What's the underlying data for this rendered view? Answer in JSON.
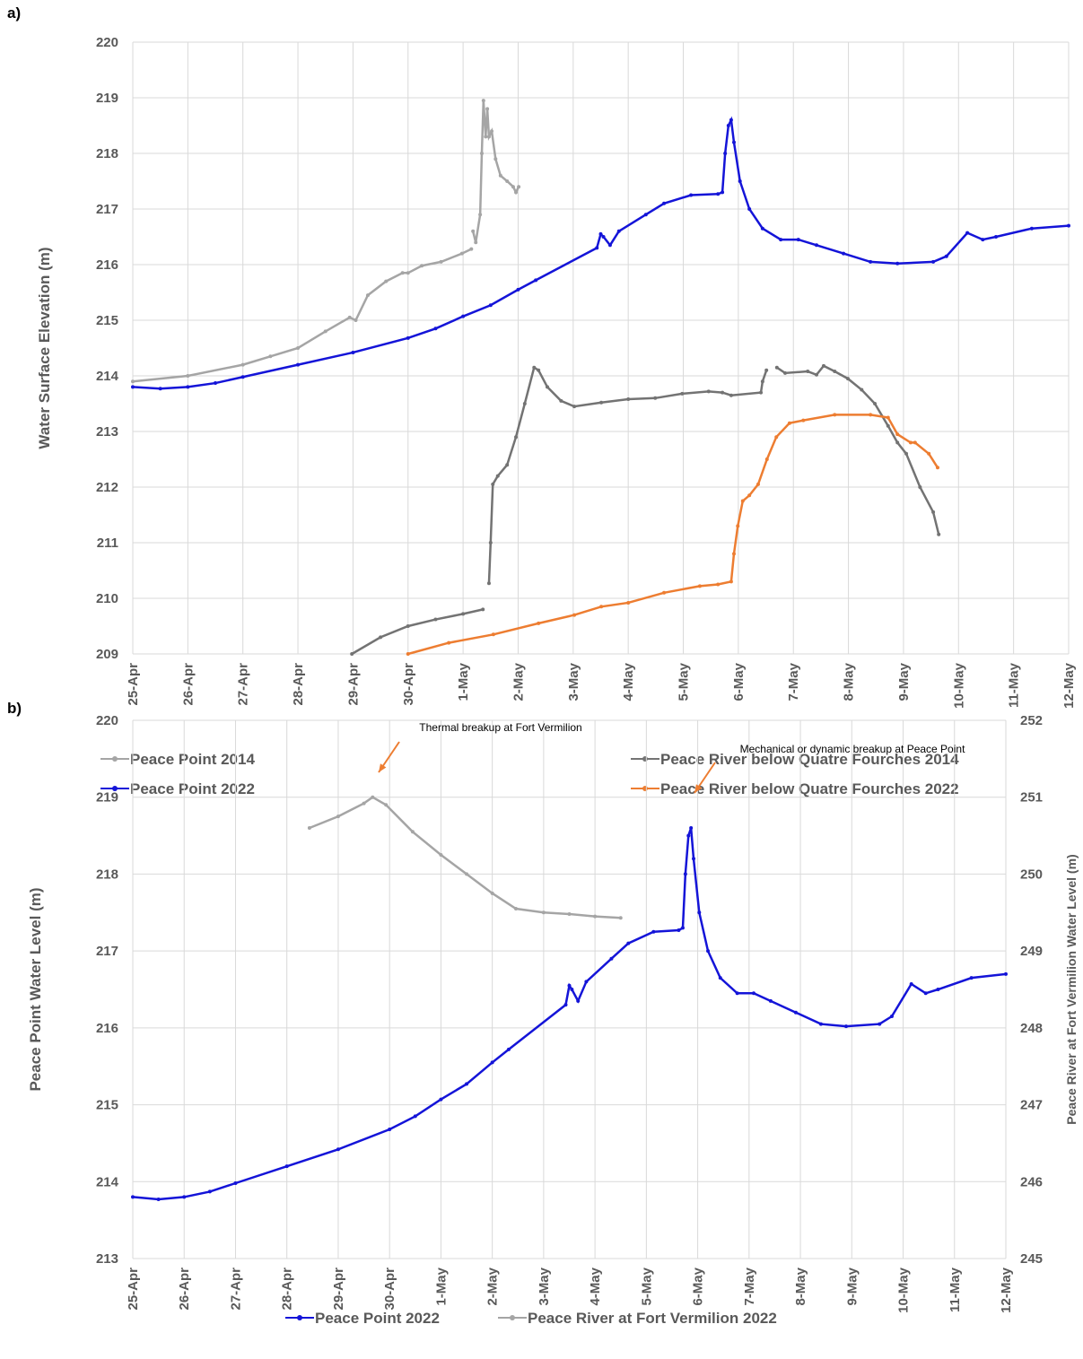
{
  "chart_data": [
    {
      "type": "line",
      "panel_label": "a)",
      "y_label": "Water Surface Elevation (m)",
      "xlim": [
        0,
        17
      ],
      "ylim": [
        209,
        220
      ],
      "yticks": [
        209,
        210,
        211,
        212,
        213,
        214,
        215,
        216,
        217,
        218,
        219,
        220
      ],
      "grid": true,
      "xticks": [
        {
          "value": 0,
          "label": "25-Apr"
        },
        {
          "value": 1,
          "label": "26-Apr"
        },
        {
          "value": 2,
          "label": "27-Apr"
        },
        {
          "value": 3,
          "label": "28-Apr"
        },
        {
          "value": 4,
          "label": "29-Apr"
        },
        {
          "value": 5,
          "label": "30-Apr"
        },
        {
          "value": 6,
          "label": "1-May"
        },
        {
          "value": 7,
          "label": "2-May"
        },
        {
          "value": 8,
          "label": "3-May"
        },
        {
          "value": 9,
          "label": "4-May"
        },
        {
          "value": 10,
          "label": "5-May"
        },
        {
          "value": 11,
          "label": "6-May"
        },
        {
          "value": 12,
          "label": "7-May"
        },
        {
          "value": 13,
          "label": "8-May"
        },
        {
          "value": 14,
          "label": "9-May"
        },
        {
          "value": 15,
          "label": "10-May"
        },
        {
          "value": 16,
          "label": "11-May"
        },
        {
          "value": 17,
          "label": "12-May"
        }
      ],
      "series": [
        {
          "name": "Peace Point  2014",
          "color": "#a5a5a5",
          "x": [
            0,
            1,
            2,
            2.5,
            3,
            3.5,
            3.94,
            4.05,
            4.27,
            4.6,
            4.9,
            5.0,
            5.25,
            5.6,
            5.98,
            6.15,
            6.16,
            6.18,
            6.23,
            6.31,
            6.34,
            6.37,
            6.41,
            6.44,
            6.47,
            6.52,
            6.59,
            6.68,
            6.8,
            6.91,
            6.96,
            7.01
          ],
          "values": [
            213.9,
            214.0,
            214.2,
            214.35,
            214.5,
            214.8,
            215.05,
            215.0,
            215.45,
            215.7,
            215.85,
            215.85,
            215.98,
            216.05,
            216.2,
            216.28,
            null,
            216.6,
            216.4,
            216.9,
            218.0,
            218.95,
            218.3,
            218.8,
            218.3,
            218.4,
            217.9,
            217.6,
            217.5,
            217.4,
            217.3,
            217.4
          ]
        },
        {
          "name": "Peace Point 2022",
          "color": "#1414d8",
          "x": [
            0,
            0.5,
            1,
            1.5,
            2,
            3,
            4,
            5,
            5.5,
            6,
            6.5,
            7,
            7.32,
            8.43,
            8.5,
            8.55,
            8.67,
            8.83,
            9.32,
            9.65,
            10.14,
            10.63,
            10.71,
            10.76,
            10.82,
            10.87,
            10.92,
            11.03,
            11.2,
            11.44,
            11.77,
            12.09,
            12.42,
            12.91,
            13.4,
            13.89,
            14.54,
            14.78,
            15.16,
            15.44,
            15.68,
            16.33,
            17
          ],
          "values": [
            213.8,
            213.77,
            213.8,
            213.87,
            213.98,
            214.2,
            214.42,
            214.68,
            214.85,
            215.07,
            215.27,
            215.55,
            215.72,
            216.3,
            216.55,
            216.5,
            216.35,
            216.6,
            216.9,
            217.1,
            217.25,
            217.27,
            217.3,
            218.0,
            218.5,
            218.6,
            218.2,
            217.5,
            217.0,
            216.65,
            216.45,
            216.45,
            216.35,
            216.2,
            216.05,
            216.02,
            216.05,
            216.15,
            216.57,
            216.45,
            216.5,
            216.65,
            216.7
          ]
        },
        {
          "name": "Peace River below Quatre Fourches 2014",
          "color": "#737373",
          "x": [
            3.98,
            4.5,
            5.0,
            5.5,
            6.0,
            6.36,
            6.4,
            6.47,
            6.5,
            6.54,
            6.63,
            6.8,
            6.96,
            7.12,
            7.29,
            7.37,
            7.53,
            7.78,
            8.02,
            8.51,
            9.0,
            9.49,
            9.98,
            10.46,
            10.71,
            10.87,
            11.41,
            11.44,
            11.51,
            11.6,
            11.7,
            11.85,
            12.26,
            12.42,
            12.55,
            12.75,
            12.99,
            13.24,
            13.48,
            13.72,
            13.89,
            14.05,
            14.3,
            14.54,
            14.64
          ],
          "values": [
            209.0,
            209.3,
            209.5,
            209.62,
            209.72,
            209.8,
            null,
            210.27,
            211.0,
            212.05,
            212.2,
            212.4,
            212.9,
            213.5,
            214.15,
            214.1,
            213.8,
            213.55,
            213.45,
            213.52,
            213.58,
            213.6,
            213.68,
            213.72,
            213.7,
            213.65,
            213.7,
            213.9,
            214.1,
            null,
            214.15,
            214.05,
            214.08,
            214.02,
            214.18,
            214.08,
            213.95,
            213.75,
            213.5,
            213.1,
            212.8,
            212.6,
            212.0,
            211.55,
            211.15
          ]
        },
        {
          "name": "Peace River below Quatre Fourches 2022",
          "color": "#ed7d31",
          "x": [
            5.0,
            5.74,
            6.55,
            7.37,
            8.02,
            8.51,
            9.0,
            9.65,
            10.3,
            10.63,
            10.87,
            10.92,
            10.99,
            11.08,
            11.2,
            11.36,
            11.52,
            11.69,
            11.93,
            12.18,
            12.75,
            13.4,
            13.72,
            13.89,
            14.13,
            14.21,
            14.46,
            14.62
          ],
          "values": [
            209.0,
            209.2,
            209.35,
            209.55,
            209.7,
            209.85,
            209.92,
            210.1,
            210.22,
            210.25,
            210.3,
            210.8,
            211.3,
            211.75,
            211.85,
            212.05,
            212.5,
            212.9,
            213.15,
            213.2,
            213.3,
            213.3,
            213.25,
            212.95,
            212.8,
            212.8,
            212.6,
            212.35
          ]
        }
      ]
    },
    {
      "type": "line",
      "panel_label": "b)",
      "y_label": "Peace Point Water Level (m)",
      "y2_label": "Peace River at Fort Vermilion Water Level (m)",
      "xlim": [
        0,
        17
      ],
      "ylim": [
        213,
        220
      ],
      "yticks": [
        213,
        214,
        215,
        216,
        217,
        218,
        219,
        220
      ],
      "y2lim": [
        245,
        252
      ],
      "y2ticks": [
        245,
        246,
        247,
        248,
        249,
        250,
        251,
        252
      ],
      "grid": true,
      "xticks": [
        {
          "value": 0,
          "label": "25-Apr"
        },
        {
          "value": 1,
          "label": "26-Apr"
        },
        {
          "value": 2,
          "label": "27-Apr"
        },
        {
          "value": 3,
          "label": "28-Apr"
        },
        {
          "value": 4,
          "label": "29-Apr"
        },
        {
          "value": 5,
          "label": "30-Apr"
        },
        {
          "value": 6,
          "label": "1-May"
        },
        {
          "value": 7,
          "label": "2-May"
        },
        {
          "value": 8,
          "label": "3-May"
        },
        {
          "value": 9,
          "label": "4-May"
        },
        {
          "value": 10,
          "label": "5-May"
        },
        {
          "value": 11,
          "label": "6-May"
        },
        {
          "value": 12,
          "label": "7-May"
        },
        {
          "value": 13,
          "label": "8-May"
        },
        {
          "value": 14,
          "label": "9-May"
        },
        {
          "value": 15,
          "label": "10-May"
        },
        {
          "value": 16,
          "label": "11-May"
        },
        {
          "value": 17,
          "label": "12-May"
        }
      ],
      "annotations": [
        "Thermal breakup at Fort Vermilion",
        "Mechanical or dynamic breakup at Peace Point"
      ],
      "series": [
        {
          "name": "Peace Point 2022",
          "color": "#1414d8",
          "x": [
            0,
            0.5,
            1,
            1.5,
            2,
            3,
            4,
            5,
            5.5,
            6,
            6.5,
            7,
            7.32,
            8.43,
            8.5,
            8.55,
            8.67,
            8.83,
            9.32,
            9.65,
            10.14,
            10.63,
            10.71,
            10.76,
            10.82,
            10.87,
            10.92,
            11.03,
            11.2,
            11.44,
            11.77,
            12.09,
            12.42,
            12.91,
            13.4,
            13.89,
            14.54,
            14.78,
            15.16,
            15.44,
            15.68,
            16.33,
            17
          ],
          "values": [
            213.8,
            213.77,
            213.8,
            213.87,
            213.98,
            214.2,
            214.42,
            214.68,
            214.85,
            215.07,
            215.27,
            215.55,
            215.72,
            216.3,
            216.55,
            216.5,
            216.35,
            216.6,
            216.9,
            217.1,
            217.25,
            217.27,
            217.3,
            218.0,
            218.5,
            218.6,
            218.2,
            217.5,
            217.0,
            216.65,
            216.45,
            216.45,
            216.35,
            216.2,
            216.05,
            216.02,
            216.05,
            216.15,
            216.57,
            216.45,
            216.5,
            216.65,
            216.7
          ]
        },
        {
          "name": "Peace River at Fort Vermilion 2022",
          "color": "#a5a5a5",
          "axis": "y2",
          "x": [
            3.44,
            4.0,
            4.5,
            4.67,
            4.93,
            5.45,
            6.0,
            6.5,
            7.0,
            7.46,
            8.0,
            8.5,
            9.0,
            9.5
          ],
          "values": [
            250.6,
            250.75,
            250.92,
            251.0,
            250.9,
            250.55,
            250.25,
            250.0,
            249.75,
            249.55,
            249.5,
            249.48,
            249.45,
            249.43
          ]
        }
      ]
    }
  ]
}
